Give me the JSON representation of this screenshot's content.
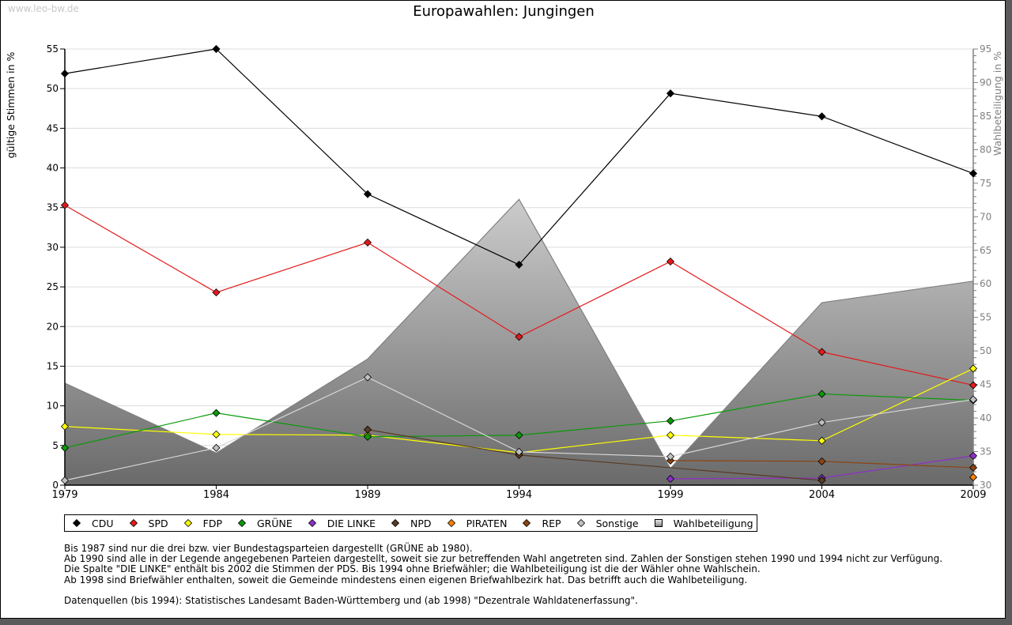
{
  "watermark": "www.leo-bw.de",
  "legend": [
    {
      "label": "CDU",
      "color": "#000000",
      "shape": "diamond"
    },
    {
      "label": "SPD",
      "color": "#e31a1c",
      "shape": "diamond"
    },
    {
      "label": "FDP",
      "color": "#ffff00",
      "shape": "diamond"
    },
    {
      "label": "GRÜNE",
      "color": "#0a9a0a",
      "shape": "diamond"
    },
    {
      "label": "DIE LINKE",
      "color": "#8e2fc8",
      "shape": "diamond"
    },
    {
      "label": "NPD",
      "color": "#5a3a22",
      "shape": "diamond"
    },
    {
      "label": "PIRATEN",
      "color": "#ff8000",
      "shape": "diamond"
    },
    {
      "label": "REP",
      "color": "#8b4513",
      "shape": "diamond"
    },
    {
      "label": "Sonstige",
      "color": "#c0c0c0",
      "shape": "diamond"
    },
    {
      "label": "Wahlbeteiligung",
      "color": "#a0a0a0",
      "shape": "square"
    }
  ],
  "notes": [
    "Bis 1987 sind nur die drei bzw. vier Bundestagsparteien dargestellt (GRÜNE ab 1980).",
    "Ab 1990 sind alle in der Legende angegebenen Parteien dargestellt, soweit sie zur betreffenden Wahl angetreten sind. Zahlen der Sonstigen stehen 1990 und 1994 nicht zur Verfügung.",
    "Die Spalte \"DIE LINKE\" enthält bis 2002 die Stimmen der PDS. Bis 1994 ohne Briefwähler; die Wahlbeteiligung ist die der Wähler ohne Wahlschein.",
    "Ab 1998 sind Briefwähler enthalten, soweit die Gemeinde mindestens einen eigenen Briefwahlbezirk hat. Das betrifft auch die Wahlbeteiligung."
  ],
  "source": "Datenquellen (bis 1994): Statistisches Landesamt Baden-Württemberg und (ab 1998) \"Dezentrale Wahldatenerfassung\".",
  "chart_data": {
    "type": "line",
    "title": "Europawahlen: Jungingen",
    "xlabel": "",
    "ylabel": "gültige Stimmen in %",
    "y2label": "Wahlbeteiligung in %",
    "x": [
      1979,
      1984,
      1989,
      1994,
      1999,
      2004,
      2009
    ],
    "x_ticks": [
      "1979",
      "1984",
      "1989",
      "1994",
      "1999",
      "2004",
      "2009"
    ],
    "ylim": [
      0,
      55
    ],
    "y_ticks": [
      0,
      5,
      10,
      15,
      20,
      25,
      30,
      35,
      40,
      45,
      50,
      55
    ],
    "y2lim": [
      30,
      95
    ],
    "y2_ticks": [
      30,
      35,
      40,
      45,
      50,
      55,
      60,
      65,
      70,
      75,
      80,
      85,
      90,
      95
    ],
    "grid": true,
    "legend_position": "bottom",
    "series": [
      {
        "name": "CDU",
        "color": "#000000",
        "values": [
          51.9,
          55.0,
          36.7,
          27.8,
          49.4,
          46.5,
          39.3
        ]
      },
      {
        "name": "SPD",
        "color": "#e31a1c",
        "values": [
          35.3,
          24.3,
          30.6,
          18.7,
          28.2,
          16.8,
          12.6
        ]
      },
      {
        "name": "FDP",
        "color": "#ffff00",
        "values": [
          7.4,
          6.4,
          6.3,
          4.1,
          6.3,
          5.6,
          14.7
        ]
      },
      {
        "name": "GRÜNE",
        "color": "#0a9a0a",
        "values": [
          4.7,
          9.1,
          6.1,
          6.3,
          8.1,
          11.5,
          10.7
        ]
      },
      {
        "name": "DIE LINKE",
        "color": "#8e2fc8",
        "values": [
          null,
          null,
          null,
          null,
          0.8,
          0.9,
          3.7
        ]
      },
      {
        "name": "NPD",
        "color": "#5a3a22",
        "values": [
          null,
          null,
          7.0,
          3.8,
          null,
          0.6,
          null
        ]
      },
      {
        "name": "PIRATEN",
        "color": "#ff8000",
        "values": [
          null,
          null,
          null,
          null,
          null,
          null,
          1.0
        ]
      },
      {
        "name": "REP",
        "color": "#8b4513",
        "values": [
          null,
          null,
          null,
          null,
          3.1,
          3.0,
          2.2
        ]
      },
      {
        "name": "Sonstige",
        "color": "#c0c0c0",
        "values": [
          0.6,
          4.7,
          13.6,
          4.2,
          3.6,
          7.9,
          10.8
        ]
      }
    ],
    "area_series": {
      "name": "Wahlbeteiligung",
      "axis": "right",
      "values": [
        45.2,
        34.8,
        48.8,
        72.6,
        32.5,
        57.2,
        60.4
      ]
    }
  }
}
